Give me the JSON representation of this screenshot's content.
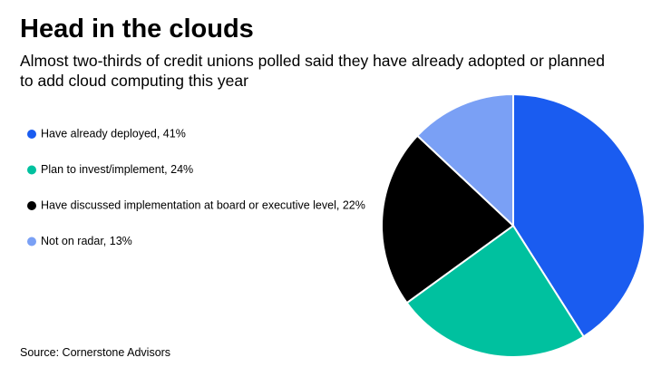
{
  "chart_data": {
    "type": "pie",
    "title": "Head in the clouds",
    "subtitle": "Almost two-thirds of credit unions polled said they have already adopted or planned to add cloud computing this year",
    "categories": [
      "Have already deployed, 41%",
      "Plan to invest/implement, 24%",
      "Have discussed implementation at board or executive level, 22%",
      "Not on radar, 13%"
    ],
    "values": [
      41,
      24,
      22,
      13
    ],
    "colors": [
      "#1a5cf0",
      "#00c19f",
      "#000000",
      "#7aa0f5"
    ],
    "source": "Source: Cornerstone Advisors"
  }
}
